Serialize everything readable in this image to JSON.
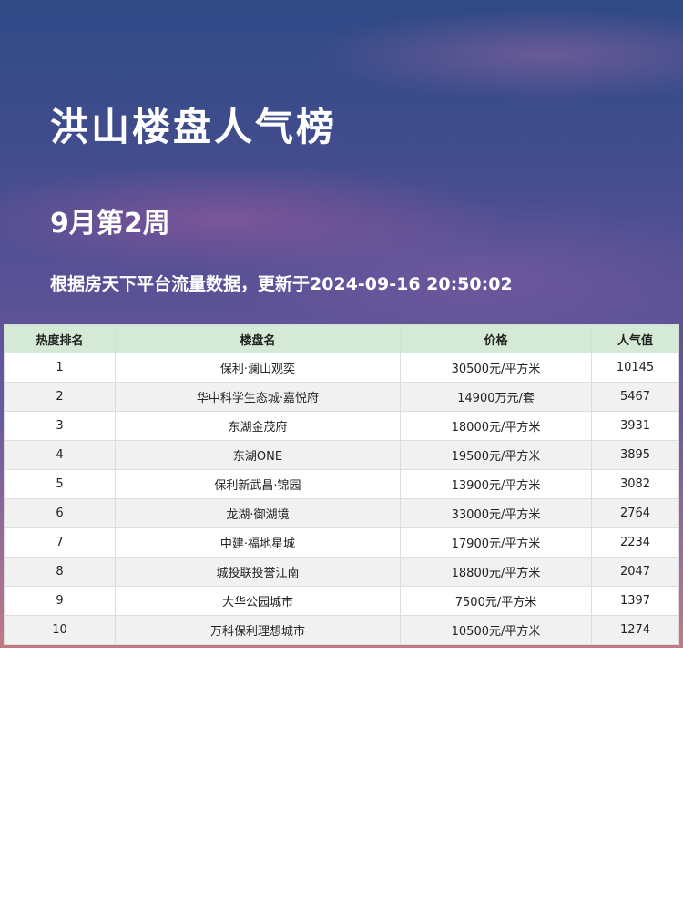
{
  "title": "洪山楼盘人气榜",
  "week": "9月第2周",
  "subtitle": "根据房天下平台流量数据，更新于2024-09-16 20:50:02",
  "table": {
    "headers": [
      "热度排名",
      "楼盘名",
      "价格",
      "人气值"
    ],
    "rows": [
      [
        "1",
        "保利·澜山观奕",
        "30500元/平方米",
        "10145"
      ],
      [
        "2",
        "华中科学生态城·嘉悦府",
        "14900万元/套",
        "5467"
      ],
      [
        "3",
        "东湖金茂府",
        "18000元/平方米",
        "3931"
      ],
      [
        "4",
        "东湖ONE",
        "19500元/平方米",
        "3895"
      ],
      [
        "5",
        "保利新武昌·锦园",
        "13900元/平方米",
        "3082"
      ],
      [
        "6",
        "龙湖·御湖境",
        "33000元/平方米",
        "2764"
      ],
      [
        "7",
        "中建·福地星城",
        "17900元/平方米",
        "2234"
      ],
      [
        "8",
        "城投联投誉江南",
        "18800元/平方米",
        "2047"
      ],
      [
        "9",
        "大华公园城市",
        "7500元/平方米",
        "1397"
      ],
      [
        "10",
        "万科保利理想城市",
        "10500元/平方米",
        "1274"
      ]
    ]
  },
  "colors": {
    "header_bg": "#d4ead6",
    "banner_top": "#2f4a86",
    "banner_bottom": "#c07a84"
  }
}
